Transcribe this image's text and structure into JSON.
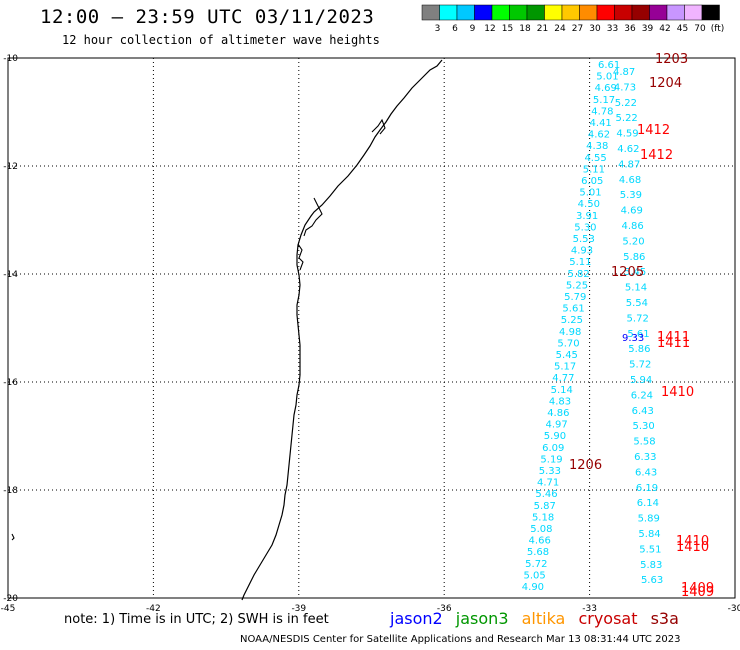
{
  "header": {
    "title": "12:00 – 23:59 UTC 03/11/2023",
    "subtitle": "12 hour collection of altimeter wave heights"
  },
  "colorbar": {
    "labels": [
      "3",
      "6",
      "9",
      "12",
      "15",
      "18",
      "21",
      "24",
      "27",
      "30",
      "33",
      "36",
      "39",
      "42",
      "45",
      "70",
      "(ft)"
    ],
    "colors": [
      "#808080",
      "#00ffff",
      "#00c8ff",
      "#0000ff",
      "#00ff00",
      "#00c800",
      "#009600",
      "#ffff00",
      "#ffc800",
      "#ff8c00",
      "#ff0000",
      "#c80000",
      "#960000",
      "#960096",
      "#c896ff",
      "#f0b4ff",
      "#000000"
    ]
  },
  "axes": {
    "lat_labels": [
      "-10",
      "-12",
      "-14",
      "-16",
      "-18",
      "-20"
    ],
    "lon_labels": [
      "-45",
      "-42",
      "-39",
      "-36",
      "-33",
      "-30"
    ]
  },
  "satellites": [
    {
      "name": "jason2",
      "color": "#0000ff"
    },
    {
      "name": "jason3",
      "color": "#009600"
    },
    {
      "name": "altika",
      "color": "#ff9600"
    },
    {
      "name": "cryosat",
      "color": "#c80000"
    },
    {
      "name": "s3a",
      "color": "#960000"
    }
  ],
  "footer": {
    "note": "note: 1) Time is in UTC; 2) SWH is in feet",
    "credit": "NOAA/NESDIS Center for Satellite Applications and Research    Mar 13 08:31:44 UTC 2023"
  },
  "observations": {
    "track_a": [
      "6.61",
      "5.01",
      "4.69",
      "5.17",
      "4.78",
      "4.41",
      "4.62",
      "4.38",
      "4.55",
      "5.11",
      "6.05",
      "5.01",
      "4.50",
      "3.91",
      "5.30",
      "5.53",
      "4.93",
      "5.11",
      "5.82",
      "5.25",
      "5.79",
      "5.61",
      "5.25",
      "4.98",
      "5.70",
      "5.45",
      "5.17",
      "4.77",
      "5.14",
      "4.83",
      "4.86",
      "4.97",
      "5.90",
      "6.09",
      "5.19",
      "5.33",
      "4.71",
      "5.46",
      "5.87",
      "5.18",
      "5.08",
      "4.66",
      "5.68",
      "5.72",
      "5.05",
      "4.90"
    ],
    "track_a_color": "#00d8ff",
    "track_b": [
      "4.87",
      "4.73",
      "5.22",
      "5.22",
      "4.59",
      "4.62",
      "4.87",
      "4.68",
      "5.39",
      "4.69",
      "4.86",
      "5.20",
      "5.86",
      "5.45",
      "5.14",
      "5.54",
      "5.72",
      "5.61",
      "5.86",
      "5.72",
      "5.94",
      "6.24",
      "6.43",
      "5.30",
      "5.58",
      "6.33",
      "6.43",
      "6.19",
      "6.14",
      "5.89",
      "5.84",
      "5.51",
      "5.83",
      "5.63"
    ],
    "track_b_color": "#00d8ff",
    "track_b_j2": [
      "9.33"
    ],
    "times": [
      {
        "label": "1203",
        "color": "#960000"
      },
      {
        "label": "1204",
        "color": "#960000"
      },
      {
        "label": "1412",
        "color": "#ff0000"
      },
      {
        "label": "1412",
        "color": "#ff0000"
      },
      {
        "label": "1205",
        "color": "#960000"
      },
      {
        "label": "1411",
        "color": "#ff0000"
      },
      {
        "label": "1411",
        "color": "#ff0000"
      },
      {
        "label": "1410",
        "color": "#ff0000"
      },
      {
        "label": "1206",
        "color": "#960000"
      },
      {
        "label": "1410",
        "color": "#ff0000"
      },
      {
        "label": "1410",
        "color": "#ff0000"
      },
      {
        "label": "1409",
        "color": "#ff0000"
      },
      {
        "label": "1409",
        "color": "#ff0000"
      }
    ]
  }
}
